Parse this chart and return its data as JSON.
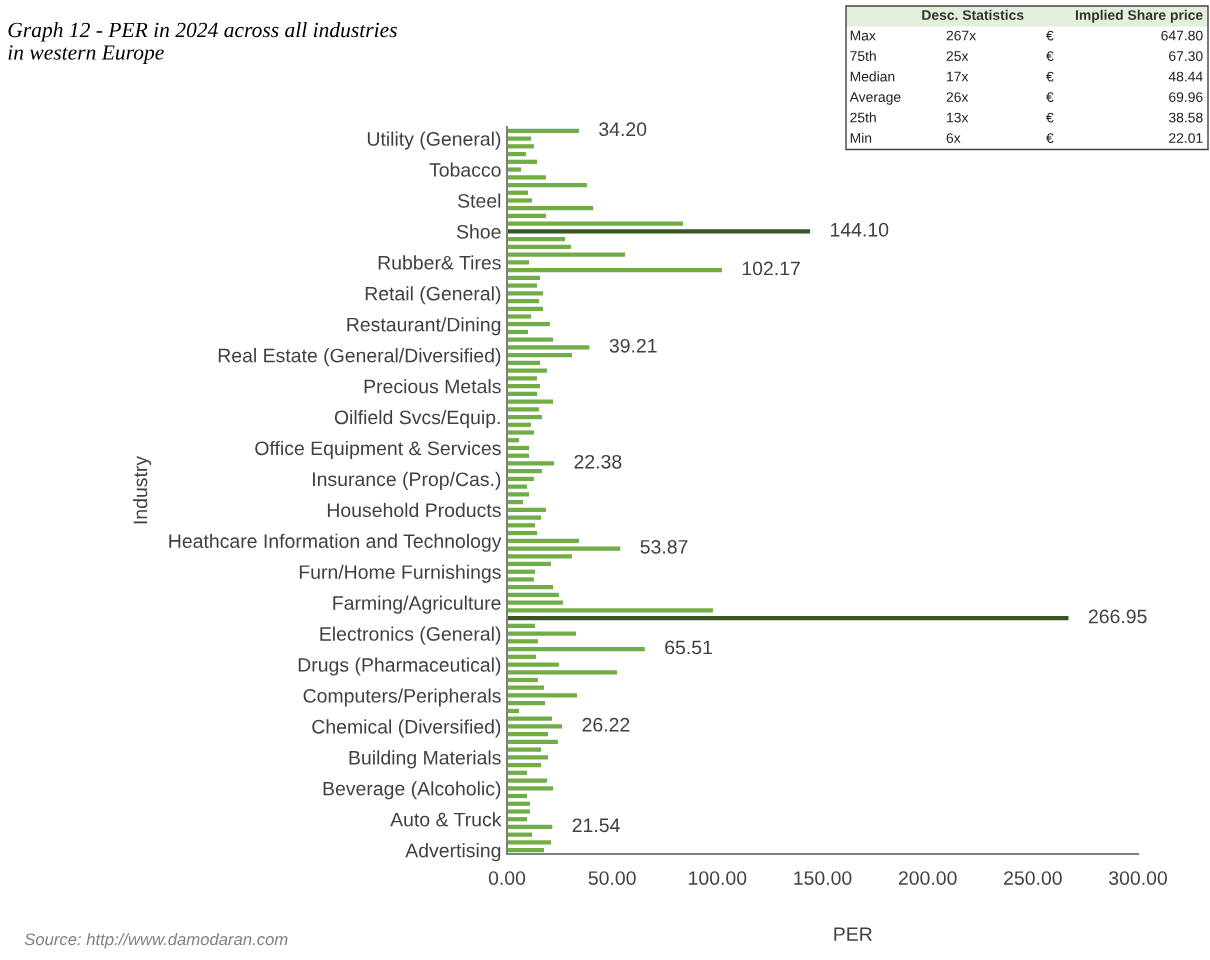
{
  "chart_data": {
    "type": "bar",
    "orientation": "horizontal",
    "title": "Graph 12 - PER in 2024 across all industries\nin western Europe",
    "xlabel": "PER",
    "ylabel": "Industry",
    "categories": [
      null,
      "Utility (General)",
      null,
      null,
      null,
      "Tobacco",
      null,
      null,
      null,
      "Steel",
      null,
      null,
      null,
      "Shoe",
      null,
      null,
      null,
      "Rubber& Tires",
      null,
      null,
      null,
      "Retail (General)",
      null,
      null,
      null,
      "Restaurant/Dining",
      null,
      null,
      null,
      "Real Estate (General/Diversified)",
      null,
      null,
      null,
      "Precious Metals",
      null,
      null,
      null,
      "Oilfield Svcs/Equip.",
      null,
      null,
      null,
      "Office Equipment & Services",
      null,
      null,
      null,
      "Insurance (Prop/Cas.)",
      null,
      null,
      null,
      "Household Products",
      null,
      null,
      null,
      "Heathcare Information and Technology",
      null,
      null,
      null,
      "Furn/Home Furnishings",
      null,
      null,
      null,
      "Farming/Agriculture",
      null,
      null,
      null,
      "Electronics (General)",
      null,
      null,
      null,
      "Drugs (Pharmaceutical)",
      null,
      null,
      null,
      "Computers/Peripherals",
      null,
      null,
      null,
      "Chemical (Diversified)",
      null,
      null,
      null,
      "Building Materials",
      null,
      null,
      null,
      "Beverage (Alcoholic)",
      null,
      null,
      null,
      "Auto & Truck",
      null,
      null,
      null,
      "Advertising"
    ],
    "values": [
      34.2,
      11.4,
      12.8,
      9.0,
      14.3,
      6.7,
      18.5,
      38.0,
      10.0,
      11.9,
      40.9,
      18.5,
      83.7,
      144.1,
      27.6,
      30.4,
      56.1,
      10.5,
      102.17,
      15.7,
      14.3,
      17.1,
      15.2,
      17.1,
      11.4,
      20.4,
      10.0,
      21.9,
      39.21,
      30.9,
      15.7,
      19.0,
      14.3,
      15.7,
      14.3,
      21.9,
      15.2,
      16.6,
      11.4,
      12.8,
      5.7,
      10.5,
      10.5,
      22.38,
      16.6,
      12.8,
      9.5,
      10.5,
      7.6,
      18.5,
      16.2,
      13.3,
      14.3,
      34.2,
      53.87,
      30.9,
      20.9,
      13.3,
      12.8,
      21.9,
      24.7,
      26.6,
      97.9,
      266.95,
      13.3,
      32.8,
      14.7,
      65.51,
      13.8,
      24.7,
      52.3,
      14.7,
      17.6,
      33.3,
      18.1,
      5.7,
      21.4,
      26.22,
      19.5,
      24.2,
      16.2,
      19.5,
      16.2,
      9.5,
      19.0,
      21.9,
      9.5,
      10.9,
      10.9,
      9.5,
      21.54,
      11.9,
      20.9,
      17.6
    ],
    "colors": [
      "#70ad47",
      "#70ad47",
      "#70ad47",
      "#70ad47",
      "#70ad47",
      "#70ad47",
      "#70ad47",
      "#70ad47",
      "#70ad47",
      "#70ad47",
      "#70ad47",
      "#70ad47",
      "#70ad47",
      "#375623",
      "#70ad47",
      "#70ad47",
      "#70ad47",
      "#70ad47",
      "#70ad47",
      "#70ad47",
      "#70ad47",
      "#70ad47",
      "#70ad47",
      "#70ad47",
      "#70ad47",
      "#70ad47",
      "#70ad47",
      "#70ad47",
      "#70ad47",
      "#70ad47",
      "#70ad47",
      "#70ad47",
      "#70ad47",
      "#70ad47",
      "#70ad47",
      "#70ad47",
      "#70ad47",
      "#70ad47",
      "#70ad47",
      "#70ad47",
      "#70ad47",
      "#70ad47",
      "#70ad47",
      "#70ad47",
      "#70ad47",
      "#70ad47",
      "#70ad47",
      "#70ad47",
      "#70ad47",
      "#70ad47",
      "#70ad47",
      "#70ad47",
      "#70ad47",
      "#70ad47",
      "#70ad47",
      "#70ad47",
      "#70ad47",
      "#70ad47",
      "#70ad47",
      "#70ad47",
      "#70ad47",
      "#70ad47",
      "#70ad47",
      "#375623",
      "#70ad47",
      "#70ad47",
      "#70ad47",
      "#70ad47",
      "#70ad47",
      "#70ad47",
      "#70ad47",
      "#70ad47",
      "#70ad47",
      "#70ad47",
      "#70ad47",
      "#70ad47",
      "#70ad47",
      "#70ad47",
      "#70ad47",
      "#70ad47",
      "#70ad47",
      "#70ad47",
      "#70ad47",
      "#70ad47",
      "#70ad47",
      "#70ad47",
      "#70ad47",
      "#70ad47",
      "#70ad47",
      "#70ad47",
      "#70ad47",
      "#70ad47",
      "#70ad47",
      "#70ad47"
    ],
    "value_labels": [
      "34.20",
      null,
      null,
      null,
      null,
      null,
      null,
      null,
      null,
      null,
      null,
      null,
      null,
      "144.10",
      null,
      null,
      null,
      null,
      "102.17",
      null,
      null,
      null,
      null,
      null,
      null,
      null,
      null,
      null,
      "39.21",
      null,
      null,
      null,
      null,
      null,
      null,
      null,
      null,
      null,
      null,
      null,
      null,
      null,
      null,
      "22.38",
      null,
      null,
      null,
      null,
      null,
      null,
      null,
      null,
      null,
      null,
      "53.87",
      null,
      null,
      null,
      null,
      null,
      null,
      null,
      null,
      "266.95",
      null,
      null,
      null,
      "65.51",
      null,
      null,
      null,
      null,
      null,
      null,
      null,
      null,
      null,
      "26.22",
      null,
      null,
      null,
      null,
      null,
      null,
      null,
      null,
      null,
      null,
      null,
      null,
      "21.54",
      null,
      null,
      null
    ],
    "xlim": [
      0,
      300
    ],
    "xticks": [
      {
        "value": 0,
        "label": "0.00"
      },
      {
        "value": 50,
        "label": "50.00"
      },
      {
        "value": 100,
        "label": "100.00"
      },
      {
        "value": 150,
        "label": "150.00"
      },
      {
        "value": 200,
        "label": "200.00"
      },
      {
        "value": 250,
        "label": "250.00"
      },
      {
        "value": 300,
        "label": "300.00"
      }
    ],
    "grid": false,
    "legend": false,
    "annotations": [
      "Source: http://www.damodaran.com",
      "Desc. Statistics",
      "Implied Share price",
      "Max",
      "267x",
      "€",
      "647.80",
      "75th",
      "25x",
      "€",
      "67.30",
      "Median",
      "17x",
      "€",
      "48.44",
      "Average",
      "26x",
      "€",
      "69.96",
      "25th",
      "13x",
      "€",
      "38.58",
      "Min",
      "6x",
      "€",
      "22.01"
    ]
  }
}
